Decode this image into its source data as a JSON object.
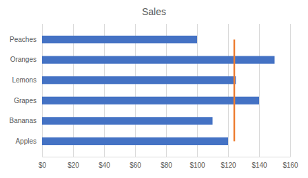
{
  "chart_data": {
    "type": "bar",
    "orientation": "horizontal",
    "title": "Sales",
    "categories": [
      "Apples",
      "Bananas",
      "Grapes",
      "Lemons",
      "Oranges",
      "Peaches"
    ],
    "series": [
      {
        "type": "bar",
        "color": "#4472c4",
        "values": [
          120,
          110,
          140,
          125,
          150,
          100
        ]
      },
      {
        "type": "line",
        "color": "#ed7d31",
        "values": [
          124,
          124,
          124,
          124,
          124,
          124
        ]
      }
    ],
    "xlim": [
      0,
      160
    ],
    "xticks": [
      {
        "value": 0,
        "label": "$0"
      },
      {
        "value": 20,
        "label": "$20"
      },
      {
        "value": 40,
        "label": "$40"
      },
      {
        "value": 60,
        "label": "$60"
      },
      {
        "value": 80,
        "label": "$80"
      },
      {
        "value": 100,
        "label": "$100"
      },
      {
        "value": 120,
        "label": "$120"
      },
      {
        "value": 140,
        "label": "$140"
      },
      {
        "value": 160,
        "label": "$160"
      }
    ],
    "grid": true
  }
}
